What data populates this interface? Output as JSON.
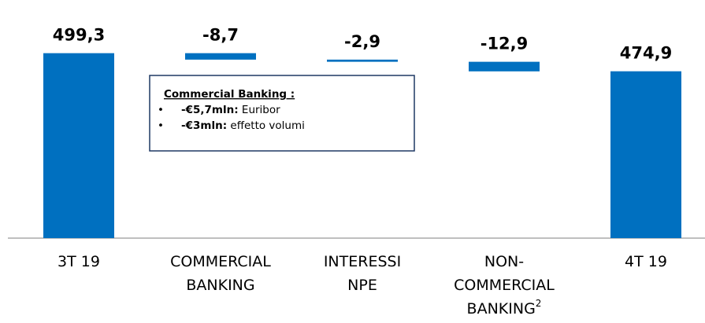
{
  "chart_data": {
    "type": "waterfall",
    "categories": [
      [
        "3T 19"
      ],
      [
        "COMMERCIAL",
        "BANKING"
      ],
      [
        "INTERESSI",
        "NPE"
      ],
      [
        "NON-",
        "COMMERCIAL",
        "BANKING"
      ],
      [
        "4T 19"
      ]
    ],
    "category_footnotes": [
      null,
      null,
      null,
      "2",
      null
    ],
    "values": [
      499.3,
      -8.7,
      -2.9,
      -12.9,
      474.9
    ],
    "value_labels": [
      "499,3",
      "-8,7",
      "-2,9",
      "-12,9",
      "474,9"
    ],
    "totals": [
      true,
      false,
      false,
      false,
      true
    ],
    "color": "#0070c0",
    "ylim": [
      250,
      500
    ],
    "annotation": {
      "title": "Commercial Banking :",
      "items": [
        {
          "bold": "-€5,7mln:",
          "text": " Euribor"
        },
        {
          "bold": "-€3mln:",
          "text": " effetto volumi"
        }
      ]
    }
  }
}
